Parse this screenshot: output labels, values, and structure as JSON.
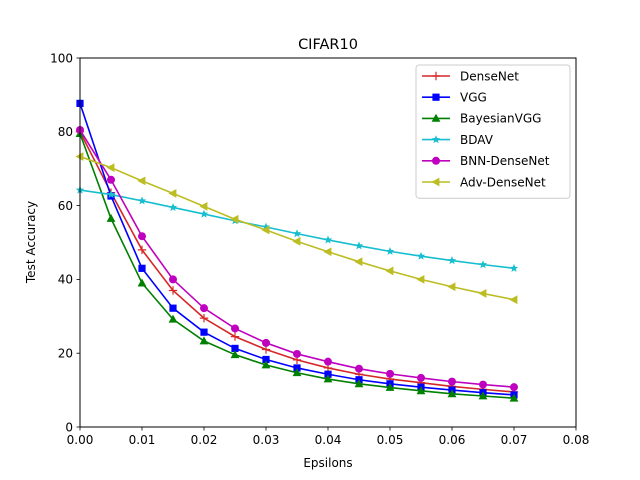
{
  "chart_data": {
    "type": "line",
    "title": "CIFAR10",
    "xlabel": "Epsilons",
    "ylabel": "Test Accuracy",
    "xlim": [
      0,
      0.08
    ],
    "ylim": [
      0,
      100
    ],
    "xticks": [
      0,
      0.01,
      0.02,
      0.03,
      0.04,
      0.05,
      0.06,
      0.07,
      0.08
    ],
    "xtick_labels": [
      "0.00",
      "0.01",
      "0.02",
      "0.03",
      "0.04",
      "0.05",
      "0.06",
      "0.07",
      "0.08"
    ],
    "yticks": [
      0,
      20,
      40,
      60,
      80,
      100
    ],
    "ytick_labels": [
      "0",
      "20",
      "40",
      "60",
      "80",
      "100"
    ],
    "grid": false,
    "legend_position": "top-right",
    "x": [
      0,
      0.005,
      0.01,
      0.015,
      0.02,
      0.025,
      0.03,
      0.035,
      0.04,
      0.045,
      0.05,
      0.055,
      0.06,
      0.065,
      0.07
    ],
    "series": [
      {
        "name": "DenseNet",
        "color": "#d62728",
        "marker": "plus",
        "values": [
          80,
          63.5,
          48,
          37,
          29.5,
          24.5,
          21,
          18.2,
          16,
          14.3,
          13,
          12,
          11,
          10.2,
          9.5
        ]
      },
      {
        "name": "VGG",
        "color": "#0000ff",
        "marker": "square",
        "values": [
          87.7,
          62.6,
          43,
          32.2,
          25.7,
          21.3,
          18.3,
          16,
          14.3,
          12.8,
          11.7,
          10.8,
          10,
          9.3,
          8.7
        ]
      },
      {
        "name": "BayesianVGG",
        "color": "#008000",
        "marker": "triangle-up",
        "values": [
          79.5,
          56.5,
          39,
          29.2,
          23.3,
          19.6,
          16.8,
          14.7,
          13,
          11.7,
          10.7,
          9.8,
          9,
          8.4,
          7.8
        ]
      },
      {
        "name": " BDAV",
        "color": "#17becf",
        "marker": "star",
        "values": [
          64.2,
          63,
          61.3,
          59.5,
          57.7,
          55.9,
          54.2,
          52.4,
          50.7,
          49.1,
          47.6,
          46.3,
          45.1,
          44,
          43
        ]
      },
      {
        "name": "BNN-DenseNet",
        "color": "#bf00bf",
        "marker": "circle",
        "values": [
          80.5,
          67,
          51.7,
          40,
          32.2,
          26.7,
          22.8,
          19.8,
          17.7,
          15.8,
          14.4,
          13.3,
          12.3,
          11.5,
          10.8
        ]
      },
      {
        "name": "Adv-DenseNet",
        "color": "#bcbd22",
        "marker": "triangle-left",
        "values": [
          73.3,
          70.3,
          66.7,
          63.3,
          59.8,
          56.3,
          53.4,
          50.3,
          47.5,
          44.8,
          42.3,
          40,
          38,
          36.2,
          34.5
        ]
      }
    ]
  }
}
